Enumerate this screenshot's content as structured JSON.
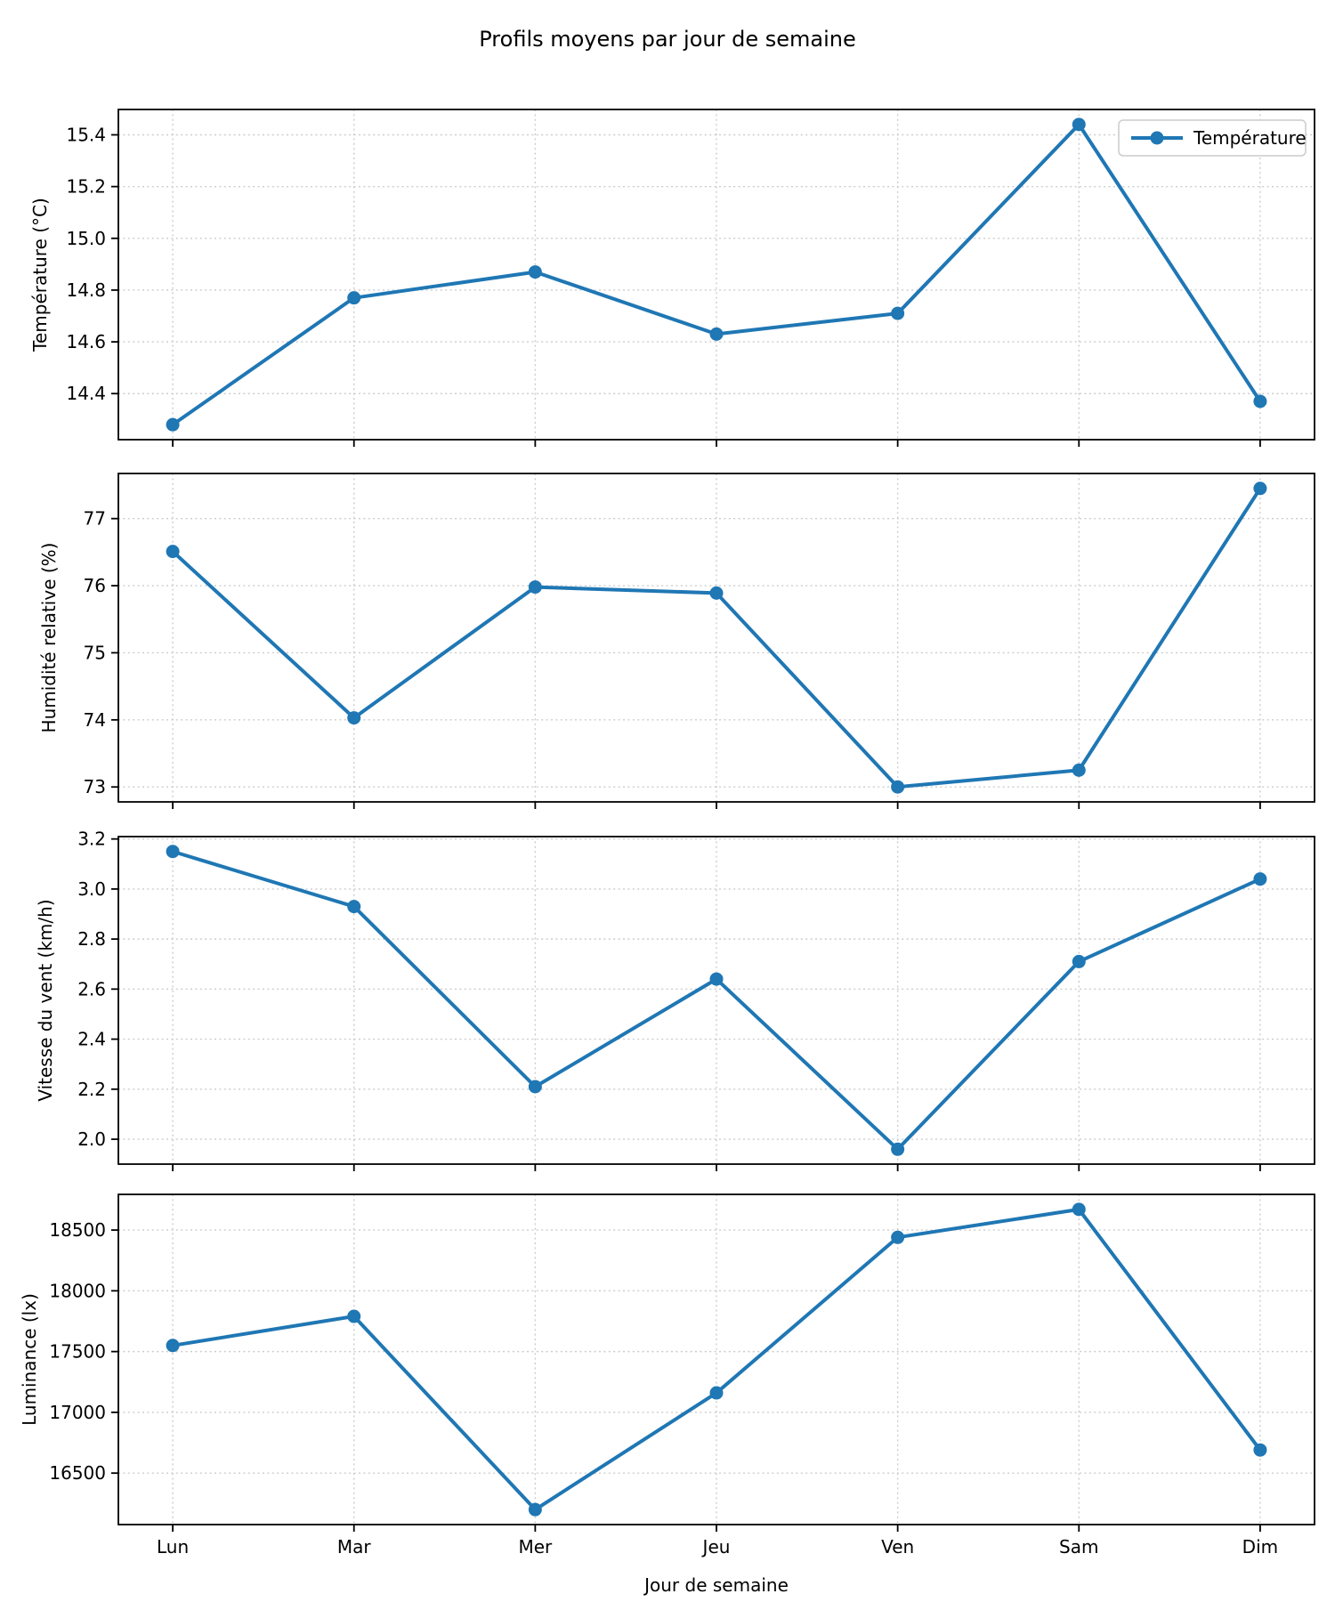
{
  "title": "Profils moyens par jour de semaine",
  "xlabel": "Jour de semaine",
  "colors": {
    "accent": "#1f77b4",
    "grid": "#cccccc",
    "spine": "#000000",
    "legend_border": "#cccccc"
  },
  "legend": {
    "label": "Température",
    "position": "upper right"
  },
  "categories": [
    "Lun",
    "Mar",
    "Mer",
    "Jeu",
    "Ven",
    "Sam",
    "Dim"
  ],
  "chart_data": [
    {
      "type": "line",
      "id": "temperature",
      "ylabel": "Température (°C)",
      "categories": [
        "Lun",
        "Mar",
        "Mer",
        "Jeu",
        "Ven",
        "Sam",
        "Dim"
      ],
      "values": [
        14.28,
        14.77,
        14.87,
        14.63,
        14.71,
        15.44,
        14.37
      ],
      "yticks": [
        14.4,
        14.6,
        14.8,
        15.0,
        15.2,
        15.4
      ],
      "ytick_decimals": 1,
      "ylim": [
        14.222,
        15.498
      ],
      "grid": true,
      "legend": "Température"
    },
    {
      "type": "line",
      "id": "humidity",
      "ylabel": "Humidité relative (%)",
      "categories": [
        "Lun",
        "Mar",
        "Mer",
        "Jeu",
        "Ven",
        "Sam",
        "Dim"
      ],
      "values": [
        76.51,
        74.03,
        75.98,
        75.89,
        73.0,
        73.25,
        77.45
      ],
      "yticks": [
        73,
        74,
        75,
        76,
        77
      ],
      "ytick_decimals": 0,
      "ylim": [
        72.7775,
        77.6725
      ],
      "grid": true,
      "legend": null
    },
    {
      "type": "line",
      "id": "wind-speed",
      "ylabel": "Vitesse du vent (km/h)",
      "categories": [
        "Lun",
        "Mar",
        "Mer",
        "Jeu",
        "Ven",
        "Sam",
        "Dim"
      ],
      "values": [
        3.15,
        2.93,
        2.21,
        2.64,
        1.96,
        2.71,
        3.04
      ],
      "yticks": [
        2.0,
        2.2,
        2.4,
        2.6,
        2.8,
        3.0,
        3.2
      ],
      "ytick_decimals": 1,
      "ylim": [
        1.9005,
        3.2095
      ],
      "grid": true,
      "legend": null
    },
    {
      "type": "line",
      "id": "luminance",
      "ylabel": "Luminance (lx)",
      "categories": [
        "Lun",
        "Mar",
        "Mer",
        "Jeu",
        "Ven",
        "Sam",
        "Dim"
      ],
      "values": [
        17550,
        17790,
        16200,
        17160,
        18440,
        18670,
        16690
      ],
      "yticks": [
        16500,
        17000,
        17500,
        18000,
        18500
      ],
      "ytick_decimals": 0,
      "ylim": [
        16076.5,
        18793.5
      ],
      "grid": true,
      "legend": null
    }
  ]
}
